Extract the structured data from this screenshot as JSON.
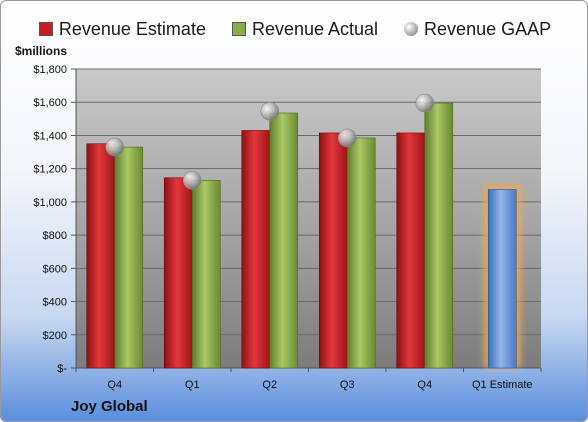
{
  "legend": {
    "estimate": "Revenue Estimate",
    "actual": "Revenue Actual",
    "gaap": "Revenue GAAP"
  },
  "unit_label": "$millions",
  "company": "Joy Global",
  "colors": {
    "estimate": "#c81e22",
    "actual": "#8aac4a",
    "gaap": "#b8b8b8",
    "future": "#6e9ad6",
    "future_glow": "#f5a94a"
  },
  "chart_data": {
    "type": "bar",
    "categories": [
      "Q4",
      "Q1",
      "Q2",
      "Q3",
      "Q4",
      "Q1 Estimate"
    ],
    "ylim": [
      0,
      1800
    ],
    "yticks": [
      0,
      200,
      400,
      600,
      800,
      1000,
      1200,
      1400,
      1600,
      1800
    ],
    "ytick_labels": [
      "$-",
      "$200",
      "$400",
      "$600",
      "$800",
      "$1,000",
      "$1,200",
      "$1,400",
      "$1,600",
      "$1,800"
    ],
    "series": [
      {
        "name": "Revenue Estimate",
        "values": [
          1350,
          1145,
          1430,
          1415,
          1415,
          null
        ]
      },
      {
        "name": "Revenue Actual",
        "values": [
          1330,
          1130,
          1535,
          1385,
          1595,
          null
        ]
      },
      {
        "name": "Revenue GAAP",
        "values": [
          1330,
          1130,
          1545,
          1385,
          1595,
          null
        ]
      }
    ],
    "estimate_bar": {
      "category": "Q1 Estimate",
      "value": 1075
    },
    "grid": true,
    "legend_position": "top"
  }
}
